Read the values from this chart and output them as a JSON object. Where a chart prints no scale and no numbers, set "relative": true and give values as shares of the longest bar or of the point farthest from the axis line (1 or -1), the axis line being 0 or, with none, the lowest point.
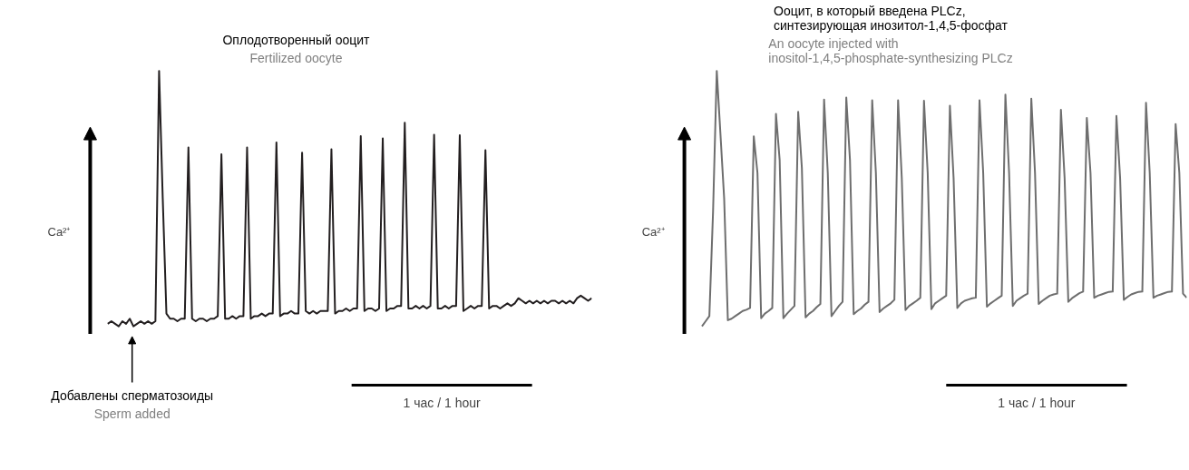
{
  "chart_data": [
    {
      "type": "line",
      "title": "Оплодотворенный ооцит",
      "subtitle": "Fertilized oocyte",
      "ylabel": "Ca²⁺",
      "relative": true,
      "tick_labels": false,
      "annotations": [
        "Добавлены сперматозоиды\nSperm added",
        "1 час / 1 hour"
      ],
      "categories": [
        null,
        null,
        null,
        null,
        null,
        null,
        null,
        null,
        null,
        null,
        null,
        null,
        null,
        null,
        null,
        null,
        null,
        null,
        null,
        null,
        null,
        null,
        null,
        null,
        null,
        null,
        null,
        null,
        null,
        null,
        null,
        null,
        null,
        null,
        null,
        null,
        null,
        null,
        null,
        null,
        null,
        null,
        null,
        null,
        null,
        null,
        null,
        null,
        null,
        null,
        null,
        null,
        null,
        null,
        null,
        null,
        null,
        null,
        null,
        null,
        null,
        null,
        null,
        null,
        null,
        null,
        null,
        null,
        null,
        null,
        null,
        null,
        null,
        null,
        null,
        null,
        null,
        null,
        null,
        null,
        null,
        null,
        null,
        null,
        null,
        null,
        null,
        null,
        null,
        null,
        null,
        null,
        null,
        null,
        null,
        null,
        null,
        null,
        null,
        null,
        null,
        null,
        null,
        null,
        null,
        null,
        null,
        null,
        null,
        null,
        null,
        null,
        null,
        null,
        null,
        null,
        null,
        null,
        null,
        null,
        null,
        null,
        null,
        null,
        null,
        null,
        null,
        null,
        null,
        null,
        null,
        null,
        null
      ],
      "series": [
        {
          "color": "#231f20",
          "values": [
            0.01,
            0.02,
            0.01,
            0.0,
            0.02,
            0.01,
            0.03,
            0.0,
            0.01,
            0.02,
            0.01,
            0.02,
            0.01,
            0.02,
            1.0,
            0.5,
            0.05,
            0.03,
            0.03,
            0.02,
            0.03,
            0.03,
            0.7,
            0.03,
            0.02,
            0.03,
            0.03,
            0.02,
            0.03,
            0.03,
            0.04,
            0.674,
            0.03,
            0.03,
            0.04,
            0.03,
            0.04,
            0.04,
            0.7,
            0.03,
            0.04,
            0.04,
            0.05,
            0.04,
            0.05,
            0.05,
            0.72,
            0.04,
            0.05,
            0.05,
            0.06,
            0.05,
            0.05,
            0.68,
            0.06,
            0.05,
            0.06,
            0.05,
            0.06,
            0.06,
            0.06,
            0.693,
            0.05,
            0.06,
            0.06,
            0.07,
            0.06,
            0.07,
            0.07,
            0.745,
            0.06,
            0.07,
            0.07,
            0.06,
            0.07,
            0.736,
            0.06,
            0.07,
            0.07,
            0.08,
            0.08,
            0.797,
            0.07,
            0.07,
            0.08,
            0.07,
            0.08,
            0.07,
            0.08,
            0.75,
            0.07,
            0.07,
            0.08,
            0.07,
            0.08,
            0.08,
            0.748,
            0.06,
            0.07,
            0.08,
            0.07,
            0.08,
            0.08,
            0.69,
            0.07,
            0.08,
            0.08,
            0.07,
            0.08,
            0.09,
            0.08,
            0.09,
            0.11,
            0.1,
            0.09,
            0.1,
            0.09,
            0.1,
            0.09,
            0.1,
            0.09,
            0.1,
            0.1,
            0.09,
            0.1,
            0.09,
            0.1,
            0.09,
            0.11,
            0.12,
            0.11,
            0.1,
            0.11
          ]
        }
      ]
    },
    {
      "type": "line",
      "title": "Ооцит, в который введена PLCz,\nсинтезирующая инозитол-1,4,5-фосфат",
      "subtitle": "An oocyte injected with\ninositol-1,4,5-phosphate-synthesizing PLCz",
      "ylabel": "Ca²⁺",
      "relative": true,
      "tick_labels": false,
      "annotations": [
        "1 час / 1 hour"
      ],
      "categories": [
        null,
        null,
        null,
        null,
        null,
        null,
        null,
        null,
        null,
        null,
        null,
        null,
        null,
        null,
        null,
        null,
        null,
        null,
        null,
        null,
        null,
        null,
        null,
        null,
        null,
        null,
        null,
        null,
        null,
        null,
        null,
        null,
        null,
        null,
        null,
        null,
        null,
        null,
        null,
        null,
        null,
        null,
        null,
        null,
        null,
        null,
        null,
        null,
        null,
        null,
        null,
        null,
        null,
        null,
        null,
        null,
        null,
        null,
        null,
        null,
        null,
        null,
        null,
        null,
        null,
        null,
        null,
        null,
        null,
        null,
        null,
        null,
        null,
        null,
        null,
        null,
        null,
        null,
        null,
        null,
        null,
        null,
        null,
        null,
        null,
        null,
        null,
        null,
        null,
        null,
        null,
        null,
        null,
        null,
        null,
        null,
        null,
        null,
        null,
        null,
        null,
        null,
        null,
        null,
        null,
        null,
        null,
        null,
        null,
        null,
        null,
        null,
        null,
        null,
        null,
        null,
        null,
        null,
        null,
        null,
        null,
        null,
        null,
        null,
        null,
        null,
        null,
        null,
        null,
        null,
        null,
        null
      ],
      "series": [
        {
          "color": "#6e6e6e",
          "values": [
            0.0,
            0.02,
            0.04,
            0.45,
            1.0,
            0.752,
            0.5,
            0.024,
            0.03,
            0.04,
            0.05,
            0.06,
            0.065,
            0.072,
            0.744,
            0.6,
            0.032,
            0.05,
            0.06,
            0.072,
            0.832,
            0.65,
            0.032,
            0.05,
            0.065,
            0.08,
            0.84,
            0.62,
            0.035,
            0.05,
            0.06,
            0.075,
            0.088,
            0.888,
            0.6,
            0.04,
            0.06,
            0.08,
            0.096,
            0.896,
            0.65,
            0.048,
            0.06,
            0.07,
            0.085,
            0.096,
            0.885,
            0.6,
            0.056,
            0.07,
            0.08,
            0.09,
            0.104,
            0.885,
            0.58,
            0.064,
            0.08,
            0.09,
            0.1,
            0.112,
            0.883,
            0.6,
            0.067,
            0.09,
            0.1,
            0.11,
            0.12,
            0.864,
            0.58,
            0.072,
            0.09,
            0.1,
            0.105,
            0.11,
            0.112,
            0.885,
            0.6,
            0.077,
            0.09,
            0.1,
            0.11,
            0.12,
            0.907,
            0.6,
            0.08,
            0.1,
            0.11,
            0.12,
            0.128,
            0.891,
            0.6,
            0.088,
            0.1,
            0.11,
            0.12,
            0.125,
            0.128,
            0.848,
            0.58,
            0.096,
            0.11,
            0.12,
            0.13,
            0.136,
            0.816,
            0.6,
            0.112,
            0.12,
            0.125,
            0.13,
            0.135,
            0.136,
            0.824,
            0.58,
            0.104,
            0.115,
            0.125,
            0.13,
            0.135,
            0.136,
            0.875,
            0.6,
            0.112,
            0.12,
            0.125,
            0.13,
            0.135,
            0.136,
            0.792,
            0.6,
            0.128,
            0.112
          ]
        }
      ]
    }
  ]
}
